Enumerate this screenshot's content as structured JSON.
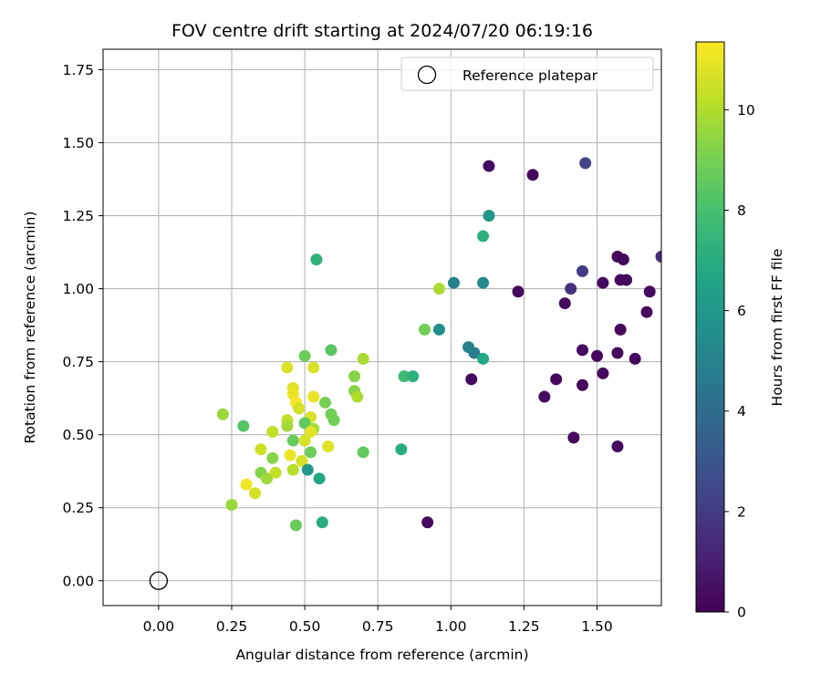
{
  "chart_data": {
    "type": "scatter",
    "title": "FOV centre drift starting at 2024/07/20 06:19:16",
    "xlabel": "Angular distance from reference (arcmin)",
    "ylabel": "Rotation from reference (arcmin)",
    "xlim": [
      -0.19,
      1.72
    ],
    "ylim": [
      -0.085,
      1.82
    ],
    "xticks": [
      "0.00",
      "0.25",
      "0.50",
      "0.75",
      "1.00",
      "1.25",
      "1.50"
    ],
    "yticks": [
      "0.00",
      "0.25",
      "0.50",
      "0.75",
      "1.00",
      "1.25",
      "1.50",
      "1.75"
    ],
    "grid": true,
    "colormap": "viridis",
    "colorbar": {
      "label": "Hours from first FF file",
      "min": 0,
      "max": 11.35,
      "ticks": [
        "0",
        "2",
        "4",
        "6",
        "8",
        "10"
      ]
    },
    "legend": {
      "position": "top-right",
      "entries": [
        "Reference platepar"
      ]
    },
    "reference_point": {
      "x": 0.0,
      "y": 0.0
    },
    "points": [
      {
        "x": 1.13,
        "y": 1.42,
        "h": 0.3
      },
      {
        "x": 1.28,
        "y": 1.39,
        "h": 0.3
      },
      {
        "x": 1.46,
        "y": 1.43,
        "h": 2.3
      },
      {
        "x": 1.57,
        "y": 1.11,
        "h": 0.3
      },
      {
        "x": 1.59,
        "y": 1.1,
        "h": 0.3
      },
      {
        "x": 1.45,
        "y": 1.06,
        "h": 2.0
      },
      {
        "x": 1.58,
        "y": 1.03,
        "h": 0.3
      },
      {
        "x": 1.6,
        "y": 1.03,
        "h": 0.3
      },
      {
        "x": 1.52,
        "y": 1.02,
        "h": 0.3
      },
      {
        "x": 1.72,
        "y": 1.11,
        "h": 1.5
      },
      {
        "x": 1.41,
        "y": 1.0,
        "h": 1.6
      },
      {
        "x": 1.23,
        "y": 0.99,
        "h": 0.3
      },
      {
        "x": 1.68,
        "y": 0.99,
        "h": 0.3
      },
      {
        "x": 1.39,
        "y": 0.95,
        "h": 0.3
      },
      {
        "x": 1.67,
        "y": 0.92,
        "h": 0.3
      },
      {
        "x": 1.58,
        "y": 0.86,
        "h": 0.3
      },
      {
        "x": 1.45,
        "y": 0.79,
        "h": 0.3
      },
      {
        "x": 1.5,
        "y": 0.77,
        "h": 0.3
      },
      {
        "x": 1.57,
        "y": 0.78,
        "h": 0.3
      },
      {
        "x": 1.63,
        "y": 0.76,
        "h": 0.3
      },
      {
        "x": 1.52,
        "y": 0.71,
        "h": 0.3
      },
      {
        "x": 1.36,
        "y": 0.69,
        "h": 0.3
      },
      {
        "x": 1.45,
        "y": 0.67,
        "h": 0.3
      },
      {
        "x": 1.32,
        "y": 0.63,
        "h": 0.3
      },
      {
        "x": 1.07,
        "y": 0.69,
        "h": 0.3
      },
      {
        "x": 1.42,
        "y": 0.49,
        "h": 0.3
      },
      {
        "x": 1.57,
        "y": 0.46,
        "h": 0.3
      },
      {
        "x": 0.92,
        "y": 0.2,
        "h": 0.3
      },
      {
        "x": 1.13,
        "y": 1.25,
        "h": 5.9
      },
      {
        "x": 1.11,
        "y": 1.18,
        "h": 7.2
      },
      {
        "x": 1.01,
        "y": 1.02,
        "h": 5.0
      },
      {
        "x": 1.11,
        "y": 1.02,
        "h": 5.3
      },
      {
        "x": 0.96,
        "y": 0.86,
        "h": 5.6
      },
      {
        "x": 1.06,
        "y": 0.8,
        "h": 5.0
      },
      {
        "x": 1.08,
        "y": 0.78,
        "h": 4.8
      },
      {
        "x": 1.11,
        "y": 0.76,
        "h": 6.8
      },
      {
        "x": 0.54,
        "y": 1.1,
        "h": 7.3
      },
      {
        "x": 0.96,
        "y": 1.0,
        "h": 9.9
      },
      {
        "x": 0.91,
        "y": 0.86,
        "h": 8.9
      },
      {
        "x": 0.84,
        "y": 0.7,
        "h": 7.7
      },
      {
        "x": 0.87,
        "y": 0.7,
        "h": 7.2
      },
      {
        "x": 0.83,
        "y": 0.45,
        "h": 7.0
      },
      {
        "x": 0.59,
        "y": 0.79,
        "h": 8.4
      },
      {
        "x": 0.5,
        "y": 0.77,
        "h": 8.8
      },
      {
        "x": 0.7,
        "y": 0.76,
        "h": 9.9
      },
      {
        "x": 0.44,
        "y": 0.73,
        "h": 10.7
      },
      {
        "x": 0.53,
        "y": 0.73,
        "h": 10.7
      },
      {
        "x": 0.67,
        "y": 0.7,
        "h": 9.3
      },
      {
        "x": 0.46,
        "y": 0.66,
        "h": 10.8
      },
      {
        "x": 0.46,
        "y": 0.64,
        "h": 11.0
      },
      {
        "x": 0.53,
        "y": 0.63,
        "h": 11.0
      },
      {
        "x": 0.67,
        "y": 0.65,
        "h": 9.3
      },
      {
        "x": 0.68,
        "y": 0.63,
        "h": 10.0
      },
      {
        "x": 0.47,
        "y": 0.61,
        "h": 11.2
      },
      {
        "x": 0.48,
        "y": 0.59,
        "h": 10.6
      },
      {
        "x": 0.57,
        "y": 0.61,
        "h": 9.0
      },
      {
        "x": 0.59,
        "y": 0.57,
        "h": 8.9
      },
      {
        "x": 0.52,
        "y": 0.56,
        "h": 10.7
      },
      {
        "x": 0.6,
        "y": 0.55,
        "h": 8.9
      },
      {
        "x": 0.22,
        "y": 0.57,
        "h": 9.6
      },
      {
        "x": 0.29,
        "y": 0.53,
        "h": 8.3
      },
      {
        "x": 0.5,
        "y": 0.54,
        "h": 8.5
      },
      {
        "x": 0.44,
        "y": 0.55,
        "h": 10.3
      },
      {
        "x": 0.44,
        "y": 0.53,
        "h": 9.8
      },
      {
        "x": 0.53,
        "y": 0.52,
        "h": 9.8
      },
      {
        "x": 0.52,
        "y": 0.51,
        "h": 10.9
      },
      {
        "x": 0.39,
        "y": 0.51,
        "h": 10.3
      },
      {
        "x": 0.46,
        "y": 0.48,
        "h": 8.7
      },
      {
        "x": 0.5,
        "y": 0.48,
        "h": 10.7
      },
      {
        "x": 0.58,
        "y": 0.46,
        "h": 10.8
      },
      {
        "x": 0.35,
        "y": 0.45,
        "h": 10.5
      },
      {
        "x": 0.45,
        "y": 0.43,
        "h": 11.0
      },
      {
        "x": 0.52,
        "y": 0.44,
        "h": 8.8
      },
      {
        "x": 0.7,
        "y": 0.44,
        "h": 8.6
      },
      {
        "x": 0.39,
        "y": 0.42,
        "h": 9.3
      },
      {
        "x": 0.49,
        "y": 0.41,
        "h": 10.6
      },
      {
        "x": 0.46,
        "y": 0.38,
        "h": 10.1
      },
      {
        "x": 0.35,
        "y": 0.37,
        "h": 9.2
      },
      {
        "x": 0.4,
        "y": 0.37,
        "h": 10.3
      },
      {
        "x": 0.37,
        "y": 0.35,
        "h": 9.7
      },
      {
        "x": 0.51,
        "y": 0.38,
        "h": 6.0
      },
      {
        "x": 0.55,
        "y": 0.35,
        "h": 6.8
      },
      {
        "x": 0.3,
        "y": 0.33,
        "h": 11.1
      },
      {
        "x": 0.33,
        "y": 0.3,
        "h": 10.6
      },
      {
        "x": 0.25,
        "y": 0.26,
        "h": 9.6
      },
      {
        "x": 0.47,
        "y": 0.19,
        "h": 8.7
      },
      {
        "x": 0.56,
        "y": 0.2,
        "h": 7.1
      }
    ]
  }
}
